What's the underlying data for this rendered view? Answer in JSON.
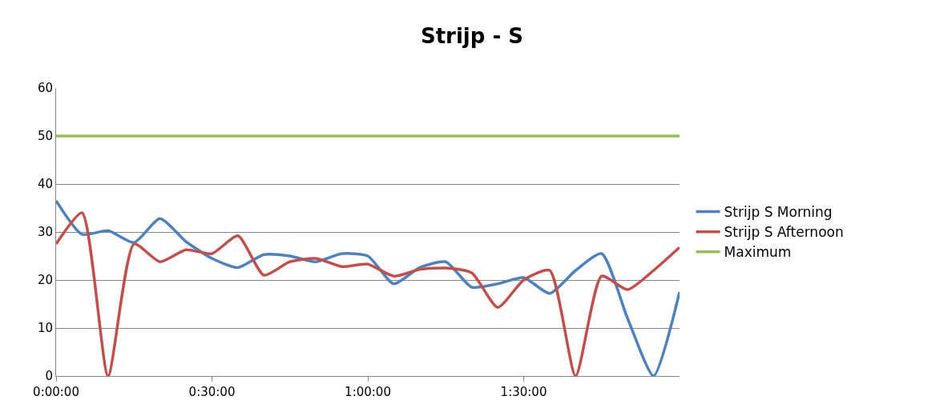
{
  "chart_data": {
    "type": "line",
    "title": "Strijp - S",
    "x": [
      0,
      0.0833,
      0.1667,
      0.25,
      0.3333,
      0.4167,
      0.5,
      0.5833,
      0.6667,
      0.75,
      0.8333,
      0.9167,
      1,
      1.0833,
      1.1667,
      1.25,
      1.3333,
      1.4167,
      1.5,
      1.5833,
      1.6667,
      1.75,
      1.8333,
      1.9167,
      2
    ],
    "series": [
      {
        "name": "Strijp S Morning",
        "color": "#4f81bd",
        "values": [
          36.5,
          29.5,
          30.3,
          27.8,
          32.8,
          28,
          24.5,
          22.6,
          25.3,
          25,
          23.8,
          25.5,
          25,
          19.2,
          22.6,
          23.8,
          18.5,
          19.2,
          20.5,
          17.2,
          22,
          25.5,
          12,
          0,
          17.5
        ]
      },
      {
        "name": "Strijp S Afternoon",
        "color": "#c0504d",
        "values": [
          27.5,
          34,
          0,
          27.5,
          23.8,
          26.3,
          25.5,
          29.2,
          21,
          23.8,
          24.5,
          22.8,
          23.3,
          20.8,
          22.2,
          22.5,
          21.5,
          14.3,
          20,
          22,
          0,
          20.8,
          18,
          22,
          26.8
        ]
      },
      {
        "name": "Maximum",
        "color": "#9bbb59",
        "values": [
          50,
          50,
          50,
          50,
          50,
          50,
          50,
          50,
          50,
          50,
          50,
          50,
          50,
          50,
          50,
          50,
          50,
          50,
          50,
          50,
          50,
          50,
          50,
          50,
          50
        ]
      }
    ],
    "xlim": [
      0,
      2
    ],
    "xticks": [
      {
        "value": 0,
        "label": "0:00:00"
      },
      {
        "value": 0.5,
        "label": "0:30:00"
      },
      {
        "value": 1,
        "label": "1:00:00"
      },
      {
        "value": 1.5,
        "label": "1:30:00"
      }
    ],
    "ylim": [
      0,
      60
    ],
    "yticks": [
      0,
      10,
      20,
      30,
      40,
      50,
      60
    ],
    "grid": "y",
    "legend": "right",
    "marker": "none",
    "line_style": "solid"
  }
}
